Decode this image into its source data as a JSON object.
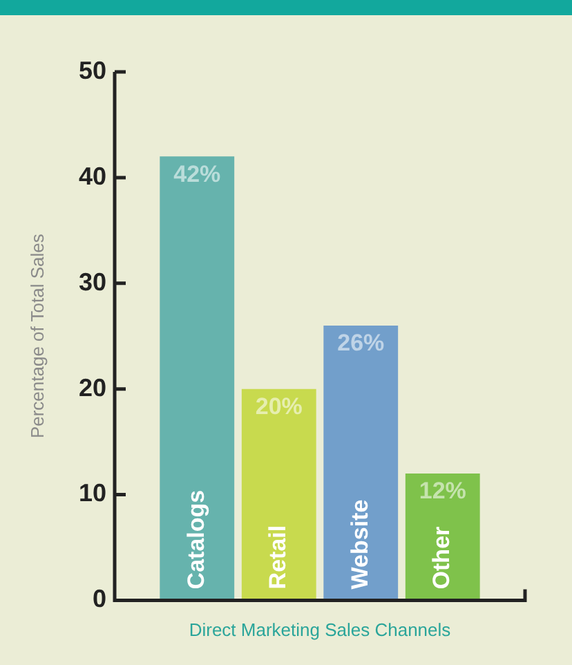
{
  "chart_data": {
    "type": "bar",
    "xlabel": "Direct Marketing Sales Channels",
    "ylabel": "Percentage of Total Sales",
    "categories": [
      "Catalogs",
      "Retail",
      "Website",
      "Other"
    ],
    "values": [
      42,
      20,
      26,
      12
    ],
    "value_labels": [
      "42%",
      "20%",
      "26%",
      "12%"
    ],
    "colors": [
      "#66b3ad",
      "#c8da4e",
      "#729fcb",
      "#7fc24b"
    ],
    "ylim": [
      0,
      50
    ],
    "yticks": [
      0,
      10,
      20,
      30,
      40,
      50
    ],
    "grid": false,
    "legend": false
  }
}
